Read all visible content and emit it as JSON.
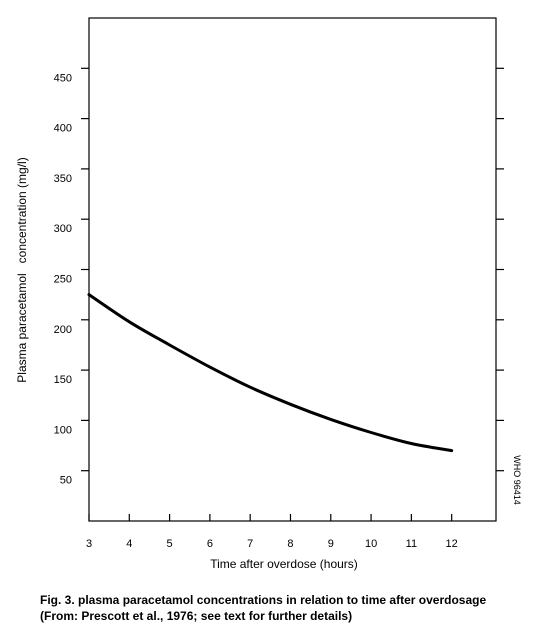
{
  "chart_data": {
    "type": "line",
    "title": "",
    "xlabel": "Time after overdose (hours)",
    "ylabel": "Plasma paracetamol   concentration (mg/l)",
    "x_ticks": [
      3,
      4,
      5,
      6,
      7,
      8,
      9,
      10,
      11,
      12
    ],
    "y_ticks": [
      50,
      100,
      150,
      200,
      250,
      300,
      350,
      400,
      450
    ],
    "xlim": [
      3,
      13.1
    ],
    "ylim": [
      0,
      500
    ],
    "grid": false,
    "series": [
      {
        "name": "",
        "color": "#000000",
        "x": [
          3,
          4,
          5,
          6,
          7,
          8,
          9,
          10,
          11,
          12
        ],
        "y": [
          225,
          198,
          175,
          153,
          133,
          116,
          101,
          88,
          77,
          70
        ]
      }
    ],
    "side_label": "WHO 96414"
  },
  "caption": {
    "line1": "Fig. 3.  plasma paracetamol concentrations in relation to time after overdosage",
    "line2": "(From:  Prescott et al., 1976;  see text for further details)"
  }
}
